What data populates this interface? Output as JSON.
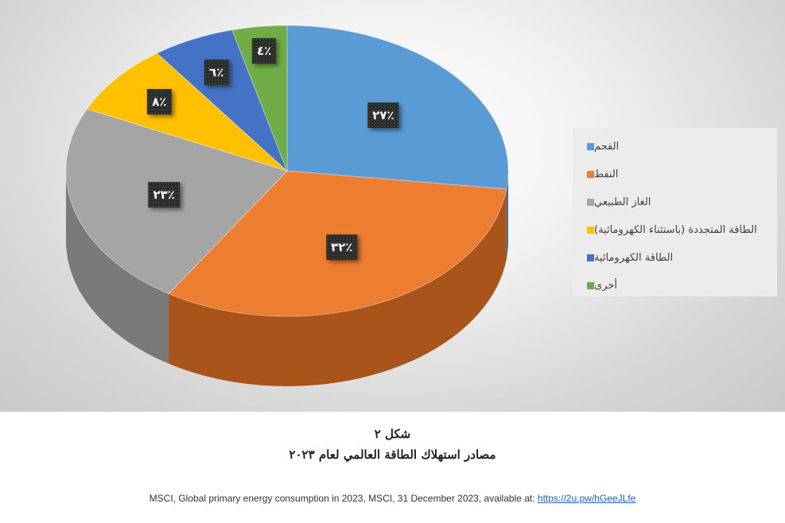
{
  "chart_data": {
    "type": "pie",
    "categories": [
      "الفحم",
      "النفط",
      "الغاز الطبيعي",
      "الطاقة المتجددة (باستثناء الكهرومائية)",
      "الطاقة الكهرومائية",
      "أخرى"
    ],
    "values": [
      27,
      32,
      23,
      8,
      6,
      4
    ],
    "data_labels": [
      "٪٢٧",
      "٪٣٢",
      "٪٢٣",
      "٪٨",
      "٪٦",
      "٪٤"
    ],
    "colors": [
      "#5b9bd5",
      "#ed7d31",
      "#a5a5a5",
      "#ffc000",
      "#4472c4",
      "#70ad47"
    ],
    "side_colors": [
      "#3a6d9e",
      "#a8541a",
      "#7a7a7a",
      "#b98a00",
      "#2f4f8a",
      "#4c7a30"
    ],
    "legend_position": "right",
    "style": "3d"
  },
  "caption": {
    "figure_number": "شكل ٢",
    "title": "مصادر استهلاك الطاقة العالمي لعام ٢٠٢٣"
  },
  "source": {
    "text": "MSCI, Global primary energy consumption in 2023, MSCI, 31 December 2023, available at:",
    "link_text": "https://2u.pw/hGeeJLfe"
  }
}
